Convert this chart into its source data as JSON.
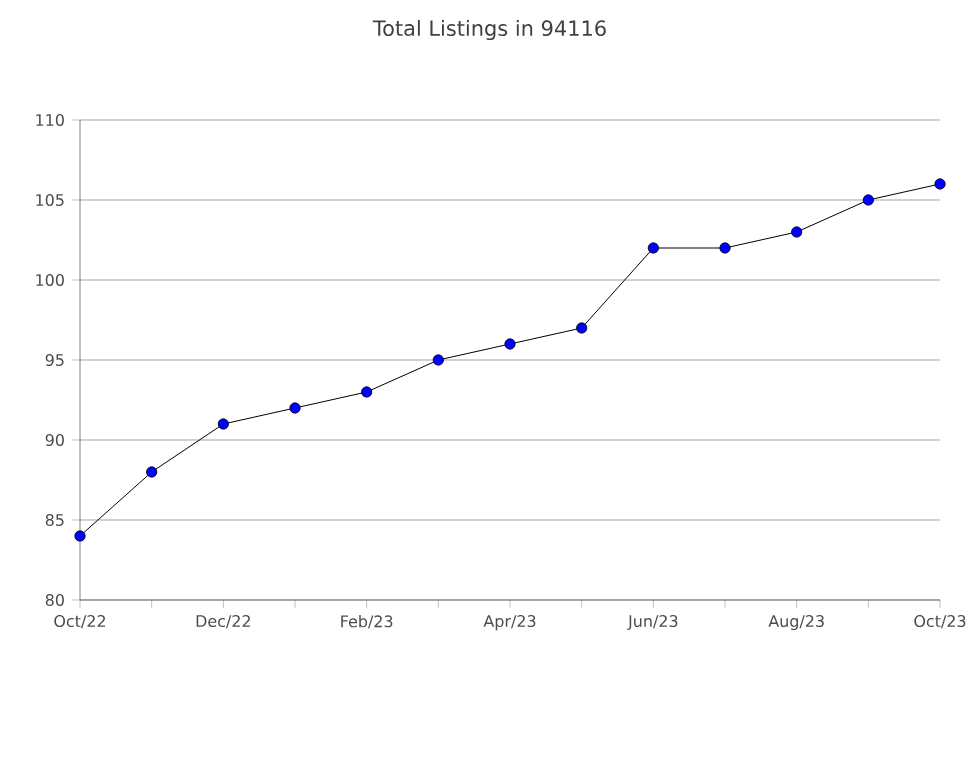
{
  "chart_data": {
    "type": "line",
    "title": "Total Listings in 94116",
    "categories": [
      "Oct/22",
      null,
      "Dec/22",
      null,
      "Feb/23",
      null,
      "Apr/23",
      null,
      "Jun/23",
      null,
      "Aug/23",
      null,
      "Oct/23"
    ],
    "series": [
      {
        "color": "#0000ff",
        "values": [
          84,
          88,
          91,
          92,
          93,
          95,
          96,
          97,
          102,
          102,
          103,
          105,
          106
        ]
      }
    ],
    "ylim": [
      80,
      110
    ],
    "yticks": [
      80,
      85,
      90,
      95,
      100,
      105,
      110
    ],
    "grid": "y",
    "marker": "circle",
    "line_style": "solid"
  }
}
